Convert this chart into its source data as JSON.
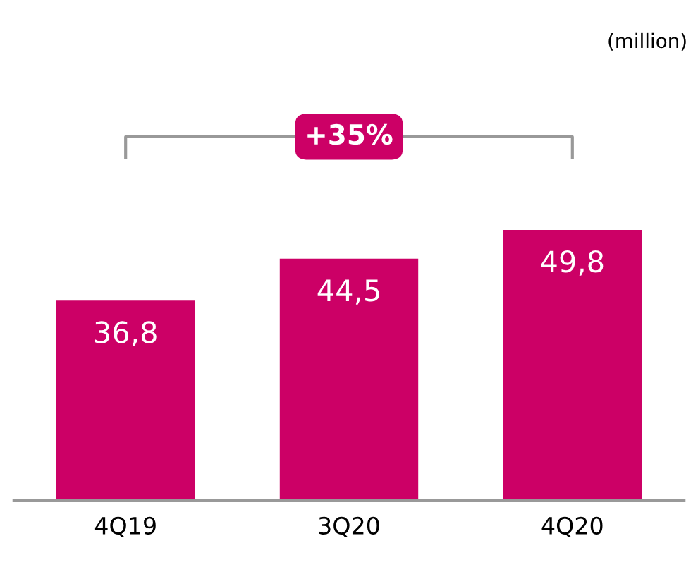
{
  "chart_data": {
    "type": "bar",
    "categories": [
      "4Q19",
      "3Q20",
      "4Q20"
    ],
    "values": [
      36.8,
      44.5,
      49.8
    ],
    "color": "#cc0066",
    "value_labels": [
      "36,8",
      "44,5",
      "49,8"
    ],
    "annotations": [
      "(million)",
      "+35%"
    ]
  }
}
